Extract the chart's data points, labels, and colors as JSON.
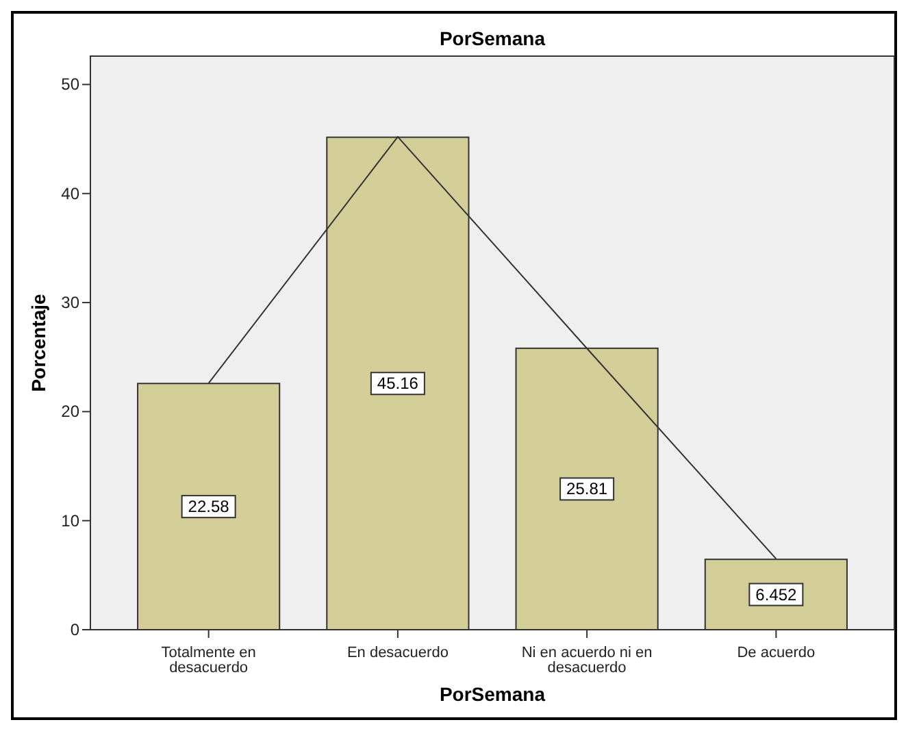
{
  "chart_data": {
    "type": "bar",
    "title": "PorSemana",
    "xlabel": "PorSemana",
    "ylabel": "Porcentaje",
    "categories": [
      "Totalmente en desacuerdo",
      "En desacuerdo",
      "Ni en acuerdo ni en desacuerdo",
      "De acuerdo"
    ],
    "series": [
      {
        "color": "#d3ce97",
        "values": [
          22.58,
          45.16,
          25.81,
          6.452
        ],
        "value_labels": [
          "22.58",
          "45.16",
          "25.81",
          "6.452"
        ]
      },
      {
        "type": "line",
        "color": "#333333",
        "values": [
          22.6,
          45.2,
          25.8,
          6.5
        ]
      }
    ],
    "ylim": [
      0,
      52.6
    ],
    "yticks": [
      0,
      10,
      20,
      30,
      40,
      50
    ],
    "grid": false,
    "marker": "none"
  }
}
